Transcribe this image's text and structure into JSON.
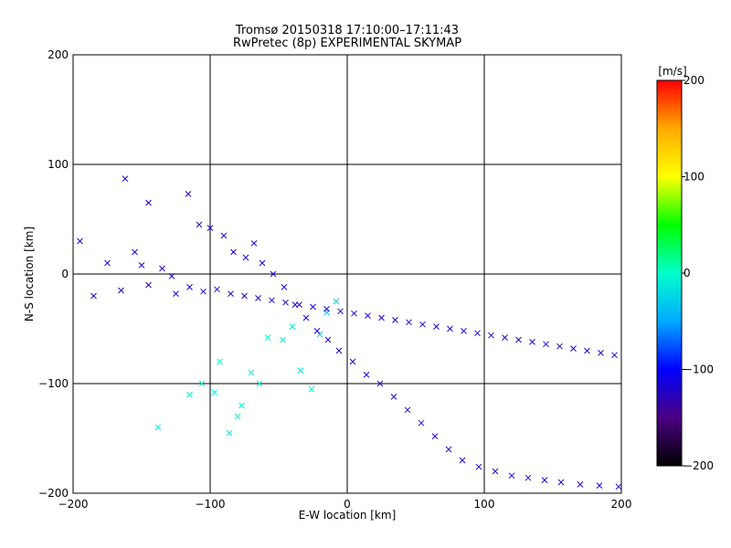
{
  "chart_data": {
    "type": "scatter",
    "title": "Tromsø 20150318 17:10:00–17:11:43",
    "subtitle": "RwPretec (8p) EXPERIMENTAL SKYMAP",
    "xlabel": "E-W location [km]",
    "ylabel": "N-S location [km]",
    "xlim": [
      -200,
      200
    ],
    "ylim": [
      -200,
      200
    ],
    "xticks": [
      -200,
      -100,
      0,
      100,
      200
    ],
    "yticks": [
      -200,
      -100,
      0,
      100,
      200
    ],
    "xtick_labels": [
      "−200",
      "−100",
      "0",
      "100",
      "200"
    ],
    "ytick_labels": [
      "−200",
      "−100",
      "0",
      "100",
      "200"
    ],
    "grid": true,
    "colorbar": {
      "label": "[m/s]",
      "range": [
        -200,
        200
      ],
      "ticks": [
        200,
        100,
        0,
        -100,
        -200
      ],
      "tick_labels": [
        "200",
        "100",
        "0",
        "−100",
        "−200"
      ],
      "colormap": [
        "#000000",
        "#4b0082",
        "#0000ff",
        "#00aaff",
        "#00ffcc",
        "#00ff00",
        "#ffff00",
        "#ffaa00",
        "#ff0000"
      ]
    },
    "series": [
      {
        "points": [
          [
            -138,
            -140,
            -6,
            "x"
          ],
          [
            -115,
            -110,
            -7,
            "x"
          ],
          [
            -106,
            -100,
            -8,
            "x"
          ],
          [
            -97,
            -108,
            -10,
            "x"
          ],
          [
            -93,
            -80,
            -5,
            "x"
          ],
          [
            -86,
            -145,
            -6,
            "x"
          ],
          [
            -80,
            -130,
            -8,
            "x"
          ],
          [
            -77,
            -120,
            -6,
            "x"
          ],
          [
            -70,
            -90,
            -8,
            "x"
          ],
          [
            -64,
            -100,
            -10,
            "x"
          ],
          [
            -58,
            -58,
            -4,
            "x"
          ],
          [
            -47,
            -60,
            -12,
            "x"
          ],
          [
            -40,
            -48,
            -18,
            "x"
          ],
          [
            -34,
            -88,
            -22,
            "x"
          ],
          [
            -26,
            -105,
            -3,
            "x"
          ],
          [
            -20,
            -55,
            -26,
            "x"
          ],
          [
            -15,
            -35,
            -30,
            "x"
          ],
          [
            -8,
            -25,
            -32,
            "x"
          ],
          [
            -162,
            87,
            "x"
          ],
          [
            -150,
            8,
            "x"
          ],
          [
            -145,
            65,
            "x"
          ],
          [
            -128,
            -2,
            "x"
          ],
          [
            -116,
            73,
            "x"
          ],
          [
            -108,
            45,
            "x"
          ],
          [
            -100,
            42,
            "x"
          ],
          [
            -90,
            35,
            "x"
          ],
          [
            -83,
            20,
            "x"
          ],
          [
            -74,
            15,
            "x"
          ],
          [
            -68,
            28,
            "x"
          ],
          [
            -62,
            10,
            "x"
          ],
          [
            -54,
            0,
            "x"
          ],
          [
            -46,
            -12,
            "x"
          ],
          [
            -38,
            -28,
            "x"
          ],
          [
            -30,
            -40,
            "x"
          ],
          [
            -22,
            -52,
            "x"
          ],
          [
            -14,
            -60,
            "x"
          ],
          [
            -6,
            -70,
            "x"
          ],
          [
            4,
            -80,
            "x"
          ],
          [
            14,
            -92,
            "x"
          ],
          [
            24,
            -100,
            "x"
          ],
          [
            34,
            -112,
            "x"
          ],
          [
            44,
            -124,
            "x"
          ],
          [
            54,
            -136,
            "x"
          ],
          [
            64,
            -148,
            "x"
          ],
          [
            74,
            -160,
            "x"
          ],
          [
            84,
            -170,
            "x"
          ],
          [
            96,
            -176,
            "x"
          ],
          [
            108,
            -180,
            "x"
          ],
          [
            120,
            -184,
            "x"
          ],
          [
            132,
            -186,
            "x"
          ],
          [
            144,
            -188,
            "x"
          ],
          [
            156,
            -190,
            "x"
          ],
          [
            170,
            -192,
            "x"
          ],
          [
            184,
            -193,
            "x"
          ],
          [
            198,
            -194,
            "x"
          ],
          [
            -195,
            30,
            "x"
          ],
          [
            -185,
            -20,
            "x"
          ],
          [
            -175,
            10,
            "x"
          ],
          [
            -165,
            -15,
            "x"
          ],
          [
            -155,
            20,
            "x"
          ],
          [
            -145,
            -10,
            "x"
          ],
          [
            -135,
            5,
            "x"
          ],
          [
            -125,
            -18,
            "x"
          ],
          [
            -115,
            -12,
            "x"
          ],
          [
            -105,
            -16,
            "x"
          ],
          [
            -95,
            -14,
            "x"
          ],
          [
            -85,
            -18,
            "x"
          ],
          [
            -75,
            -20,
            "x"
          ],
          [
            -65,
            -22,
            "x"
          ],
          [
            -55,
            -24,
            "x"
          ],
          [
            -45,
            -26,
            "x"
          ],
          [
            -35,
            -28,
            "x"
          ],
          [
            -25,
            -30,
            "x"
          ],
          [
            -15,
            -32,
            "x"
          ],
          [
            -5,
            -34,
            "x"
          ],
          [
            5,
            -36,
            "x"
          ],
          [
            15,
            -38,
            "x"
          ],
          [
            25,
            -40,
            "x"
          ],
          [
            35,
            -42,
            "x"
          ],
          [
            45,
            -44,
            "x"
          ],
          [
            55,
            -46,
            "x"
          ],
          [
            65,
            -48,
            "x"
          ],
          [
            75,
            -50,
            "x"
          ],
          [
            85,
            -52,
            "x"
          ],
          [
            95,
            -54,
            "x"
          ],
          [
            105,
            -56,
            "x"
          ],
          [
            115,
            -58,
            "x"
          ],
          [
            125,
            -60,
            "x"
          ],
          [
            135,
            -62,
            "x"
          ],
          [
            145,
            -64,
            "x"
          ],
          [
            155,
            -66,
            "x"
          ],
          [
            165,
            -68,
            "x"
          ],
          [
            175,
            -70,
            "x"
          ],
          [
            185,
            -72,
            "x"
          ],
          [
            195,
            -74,
            "x"
          ]
        ]
      }
    ]
  }
}
